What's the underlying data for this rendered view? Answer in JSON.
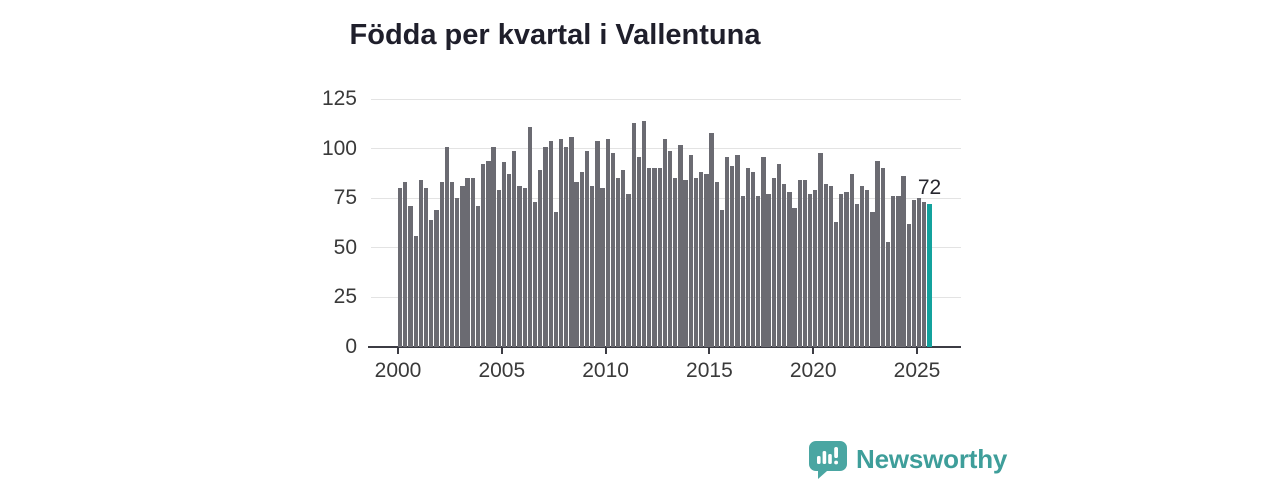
{
  "page": {
    "background": "#ffffff"
  },
  "chart": {
    "title": "Födda per kvartal i Vallentuna",
    "last_value_label": "72"
  },
  "chart_data": {
    "type": "bar",
    "title": "Födda per kvartal i Vallentuna",
    "x_start": "2000-Q1",
    "x_end": "2025-Q3",
    "period": "quarterly",
    "x_tick_labels": [
      "2000",
      "2005",
      "2010",
      "2015",
      "2020",
      "2025"
    ],
    "y_ticks": [
      0,
      25,
      50,
      75,
      100,
      125
    ],
    "ylim": [
      0,
      125
    ],
    "grid": "horizontal",
    "legend": "none",
    "bar_color": "#6b6b72",
    "highlight_color": "#13a29d",
    "highlight_index": "last",
    "annotation": {
      "text": "72",
      "target": "last-bar"
    },
    "values": [
      80,
      83,
      71,
      56,
      84,
      80,
      64,
      69,
      83,
      101,
      83,
      75,
      81,
      85,
      85,
      71,
      92,
      94,
      101,
      79,
      93,
      87,
      99,
      81,
      80,
      111,
      73,
      89,
      101,
      104,
      68,
      105,
      101,
      106,
      83,
      88,
      99,
      81,
      104,
      80,
      105,
      98,
      85,
      89,
      77,
      113,
      96,
      114,
      90,
      90,
      90,
      105,
      99,
      85,
      102,
      84,
      97,
      85,
      88,
      87,
      108,
      83,
      69,
      96,
      91,
      97,
      76,
      90,
      88,
      76,
      96,
      77,
      85,
      92,
      82,
      78,
      70,
      84,
      84,
      77,
      79,
      98,
      82,
      81,
      63,
      77,
      78,
      87,
      72,
      81,
      79,
      68,
      94,
      90,
      53,
      76,
      76,
      86,
      62,
      74,
      75,
      73,
      72
    ]
  },
  "branding": {
    "logo_text": "Newsworthy",
    "logo_icon": "speech-bubble-bar-chart",
    "icon_color": "#4aa6a2",
    "text_color": "#3e9e9a"
  }
}
